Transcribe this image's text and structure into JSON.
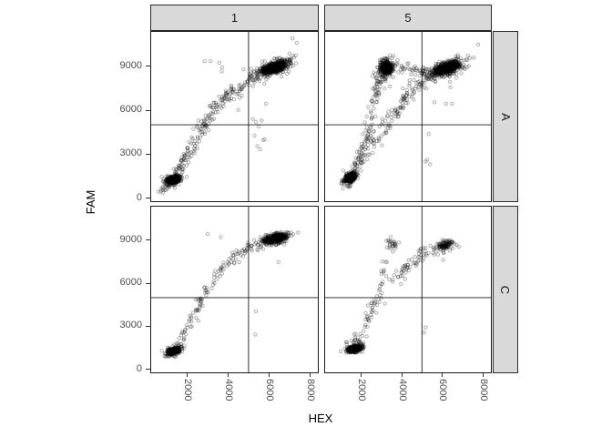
{
  "chart_data": {
    "type": "scatter",
    "description": "Faceted droplet scatter plot of FAM vs HEX fluorescence with threshold crosshair lines, facet grid rows A/C and columns 1/5",
    "xlabel": "HEX",
    "ylabel": "FAM",
    "col_labels": [
      "1",
      "5"
    ],
    "row_labels": [
      "A",
      "C"
    ],
    "x_ticks": [
      2000,
      4000,
      6000,
      8000
    ],
    "y_ticks": [
      0,
      3000,
      6000,
      9000
    ],
    "x_domain": [
      200,
      8430
    ],
    "y_domain": [
      -270,
      11400
    ],
    "thresholds": {
      "x": 5000,
      "y": 5000
    },
    "style": {
      "point_color": "rgba(0,0,0,0.30)",
      "point_radius": 1.7,
      "point_stroke_width": 1,
      "panel_border_color": "#1a1a1a",
      "threshold_line_color": "#1a1a1a",
      "strip_background": "#d9d9d9",
      "axis_text_color": "#4d4d4d"
    },
    "panels": [
      {
        "row": "A",
        "col": "1",
        "seed": 101,
        "clusters": [
          {
            "cx": 1360,
            "cy": 1280,
            "sx": 150,
            "sy": 120,
            "n": 420,
            "tilt": 0.35
          },
          {
            "cx": 1360,
            "cy": 1300,
            "sx": 270,
            "sy": 240,
            "n": 55,
            "tilt": 0.3
          },
          {
            "cx": 6250,
            "cy": 8900,
            "sx": 300,
            "sy": 160,
            "n": 560,
            "tilt": 0.45
          },
          {
            "cx": 6200,
            "cy": 8850,
            "sx": 520,
            "sy": 300,
            "n": 120,
            "tilt": 0.4
          }
        ],
        "trails": [
          {
            "path": [
              [
                700,
                550
              ],
              [
                1100,
                950
              ],
              [
                1500,
                1750
              ],
              [
                1900,
                2700
              ],
              [
                2300,
                3700
              ],
              [
                2700,
                4700
              ],
              [
                3100,
                5600
              ],
              [
                3600,
                6400
              ],
              [
                4100,
                7050
              ],
              [
                4700,
                7700
              ],
              [
                5300,
                8250
              ],
              [
                5900,
                8600
              ]
            ],
            "n": 250,
            "jx": 130,
            "jy": 240
          }
        ],
        "points": [
          [
            2860,
            9340
          ],
          [
            3140,
            9340
          ],
          [
            3570,
            9230
          ],
          [
            3710,
            8920
          ],
          [
            3690,
            8640
          ],
          [
            7150,
            10890
          ],
          [
            7360,
            10580
          ],
          [
            6930,
            8920
          ],
          [
            7070,
            9230
          ],
          [
            5860,
            6440
          ],
          [
            5210,
            5400
          ],
          [
            5640,
            5290
          ],
          [
            5500,
            4880
          ],
          [
            5290,
            4260
          ],
          [
            5710,
            3950
          ],
          [
            5790,
            4010
          ],
          [
            5430,
            3540
          ],
          [
            5570,
            3330
          ],
          [
            5360,
            5190
          ],
          [
            4500,
            6020
          ]
        ]
      },
      {
        "row": "A",
        "col": "5",
        "seed": 202,
        "clusters": [
          {
            "cx": 1470,
            "cy": 1380,
            "sx": 130,
            "sy": 130,
            "n": 430,
            "tilt": 0.4
          },
          {
            "cx": 1470,
            "cy": 1420,
            "sx": 240,
            "sy": 260,
            "n": 50,
            "tilt": 0.3
          },
          {
            "cx": 3250,
            "cy": 8900,
            "sx": 165,
            "sy": 225,
            "n": 380
          },
          {
            "cx": 3230,
            "cy": 8550,
            "sx": 250,
            "sy": 430,
            "n": 70
          },
          {
            "cx": 6200,
            "cy": 8870,
            "sx": 330,
            "sy": 180,
            "n": 520,
            "tilt": 0.45
          },
          {
            "cx": 6150,
            "cy": 8820,
            "sx": 560,
            "sy": 320,
            "n": 110,
            "tilt": 0.4
          }
        ],
        "trails": [
          {
            "path": [
              [
                1200,
                800
              ],
              [
                1500,
                1400
              ],
              [
                1700,
                1900
              ],
              [
                1950,
                2700
              ],
              [
                2150,
                3500
              ],
              [
                2350,
                4400
              ],
              [
                2450,
                5200
              ],
              [
                2550,
                6100
              ],
              [
                2700,
                7000
              ],
              [
                2850,
                7900
              ],
              [
                3000,
                8500
              ]
            ],
            "n": 140,
            "jx": 110,
            "jy": 230
          },
          {
            "path": [
              [
                2100,
                2600
              ],
              [
                2600,
                3700
              ],
              [
                3100,
                4800
              ],
              [
                3600,
                5800
              ],
              [
                4100,
                6700
              ],
              [
                4600,
                7400
              ],
              [
                5050,
                8000
              ],
              [
                5400,
                8400
              ]
            ],
            "n": 130,
            "jx": 150,
            "jy": 240
          },
          {
            "path": [
              [
                3600,
                8950
              ],
              [
                4100,
                8850
              ],
              [
                4600,
                8750
              ],
              [
                5000,
                8650
              ],
              [
                5300,
                8550
              ]
            ],
            "n": 45,
            "jx": 160,
            "jy": 190
          }
        ],
        "points": [
          [
            7760,
            10470
          ],
          [
            5330,
            4370
          ],
          [
            5260,
            2610
          ],
          [
            5180,
            2500
          ],
          [
            5400,
            2300
          ],
          [
            6470,
            6440
          ],
          [
            6180,
            6440
          ],
          [
            5610,
            6540
          ],
          [
            6400,
            7570
          ]
        ]
      },
      {
        "row": "C",
        "col": "1",
        "seed": 303,
        "clusters": [
          {
            "cx": 1330,
            "cy": 1260,
            "sx": 140,
            "sy": 105,
            "n": 400,
            "tilt": 0.35
          },
          {
            "cx": 1340,
            "cy": 1300,
            "sx": 250,
            "sy": 210,
            "n": 40,
            "tilt": 0.3
          },
          {
            "cx": 6300,
            "cy": 9120,
            "sx": 270,
            "sy": 150,
            "n": 430,
            "tilt": 0.3
          },
          {
            "cx": 6250,
            "cy": 9050,
            "sx": 470,
            "sy": 260,
            "n": 80,
            "tilt": 0.3
          }
        ],
        "trails": [
          {
            "path": [
              [
                1450,
                1500
              ],
              [
                1700,
                2100
              ],
              [
                1950,
                2750
              ],
              [
                2200,
                3450
              ],
              [
                2450,
                4150
              ],
              [
                2700,
                4900
              ],
              [
                3000,
                5600
              ],
              [
                3300,
                6250
              ],
              [
                3650,
                6900
              ],
              [
                4050,
                7500
              ],
              [
                4450,
                7950
              ],
              [
                4900,
                8350
              ],
              [
                5400,
                8700
              ]
            ],
            "n": 125,
            "jx": 110,
            "jy": 200
          }
        ],
        "points": [
          [
            3000,
            9430
          ],
          [
            3640,
            9215
          ],
          [
            5360,
            4050
          ],
          [
            5330,
            2420
          ],
          [
            6460,
            7470
          ]
        ]
      },
      {
        "row": "C",
        "col": "5",
        "seed": 404,
        "clusters": [
          {
            "cx": 1700,
            "cy": 1430,
            "sx": 165,
            "sy": 105,
            "n": 380,
            "tilt": 0.25
          },
          {
            "cx": 1780,
            "cy": 1650,
            "sx": 260,
            "sy": 280,
            "n": 40
          },
          {
            "cx": 3520,
            "cy": 8700,
            "sx": 135,
            "sy": 230,
            "n": 26
          },
          {
            "cx": 6100,
            "cy": 8650,
            "sx": 200,
            "sy": 130,
            "n": 85,
            "tilt": 0.45
          },
          {
            "cx": 5850,
            "cy": 8450,
            "sx": 430,
            "sy": 260,
            "n": 30,
            "tilt": 0.4
          }
        ],
        "trails": [
          {
            "path": [
              [
                1900,
                2100
              ],
              [
                2150,
                2800
              ],
              [
                2400,
                3500
              ],
              [
                2600,
                4100
              ],
              [
                2800,
                4800
              ],
              [
                2950,
                5350
              ]
            ],
            "n": 38,
            "jx": 130,
            "jy": 220
          },
          {
            "path": [
              [
                3500,
                6000
              ],
              [
                3850,
                6600
              ],
              [
                4200,
                7100
              ],
              [
                4550,
                7550
              ],
              [
                4900,
                7950
              ],
              [
                5200,
                8250
              ]
            ],
            "n": 48,
            "jx": 150,
            "jy": 220
          },
          {
            "path": [
              [
                2950,
                5450
              ],
              [
                3050,
                6300
              ],
              [
                3150,
                7100
              ],
              [
                3250,
                7800
              ]
            ],
            "n": 14,
            "jx": 90,
            "jy": 200
          }
        ],
        "points": [
          [
            5100,
            2570
          ],
          [
            5180,
            2930
          ],
          [
            6040,
            7630
          ],
          [
            6370,
            8270
          ],
          [
            2760,
            3940
          ],
          [
            2540,
            3630
          ],
          [
            2330,
            3690
          ],
          [
            3180,
            4580
          ]
        ]
      }
    ]
  }
}
